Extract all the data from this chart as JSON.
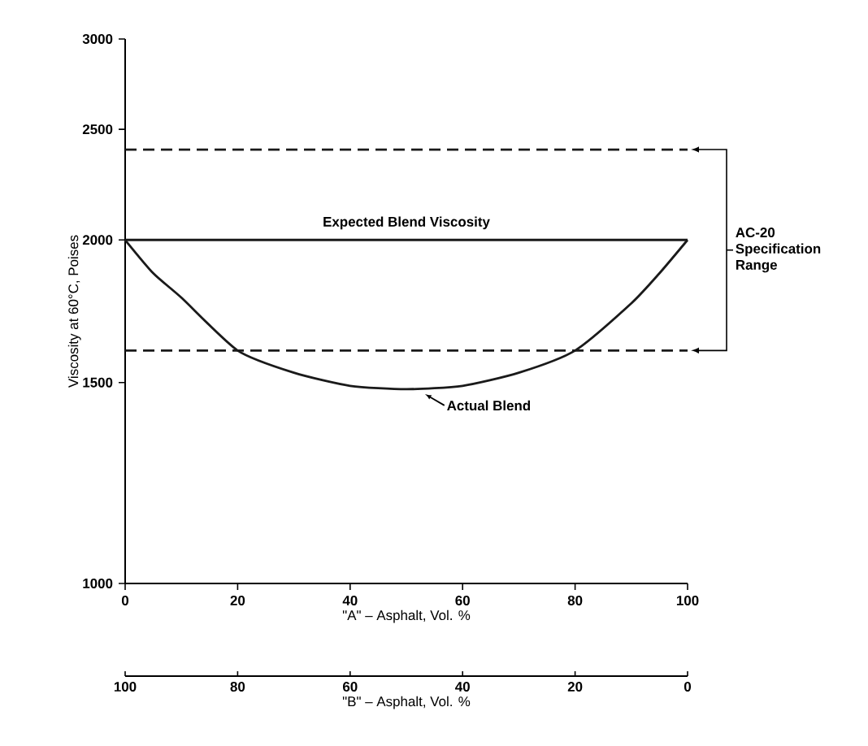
{
  "chart_data": {
    "type": "line",
    "ylabel": "Viscosity at 60°C, Poises",
    "xlabel": "\"A\" – Asphalt, Vol. %",
    "x2label": "\"B\" – Asphalt, Vol. %",
    "xlim": [
      0,
      100
    ],
    "xticks": [
      0,
      20,
      40,
      60,
      80,
      100
    ],
    "x2lim": [
      100,
      0
    ],
    "x2ticks": [
      100,
      80,
      60,
      40,
      20,
      0
    ],
    "ylim": [
      1000,
      3000
    ],
    "yticks": [
      1000,
      1500,
      2000,
      2500,
      3000
    ],
    "log": "y",
    "grid": false,
    "marker": "none",
    "series": [
      {
        "color": "#1a1a1a",
        "line_style": "solid",
        "x": [
          0,
          5,
          10,
          20,
          30,
          40,
          50,
          60,
          70,
          80,
          90,
          95,
          100
        ],
        "values": [
          2000,
          1870,
          1780,
          1600,
          1530,
          1490,
          1480,
          1490,
          1530,
          1600,
          1760,
          1870,
          2000
        ]
      }
    ],
    "ref_lines": [
      {
        "axis": "y",
        "value": 2000,
        "color": "#1a1a1a",
        "line_style": "solid",
        "label": "Expected Blend Viscosity"
      },
      {
        "axis": "y",
        "value": 2400,
        "color": "#1a1a1a",
        "line_style": "dashed"
      },
      {
        "axis": "y",
        "value": 1600,
        "color": "#1a1a1a",
        "line_style": "dashed"
      }
    ],
    "annotations": [
      {
        "text": "Actual Blend",
        "x": 53,
        "y": 1480
      },
      "AC-20 Specification Range"
    ]
  }
}
